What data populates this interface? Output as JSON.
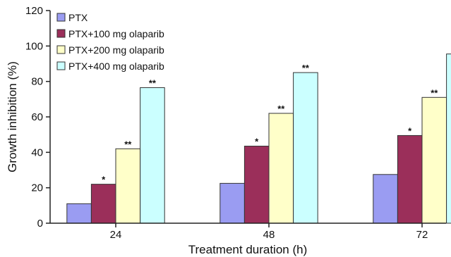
{
  "chart_data": {
    "type": "bar",
    "xlabel": "Treatment duration (h)",
    "ylabel": "Growth inhibition (%)",
    "ylim": [
      0,
      120
    ],
    "yticks": [
      0,
      20,
      40,
      60,
      80,
      100,
      120
    ],
    "categories": [
      "24",
      "48",
      "72"
    ],
    "series": [
      {
        "name": "PTX",
        "values": [
          11,
          22.5,
          27.5
        ],
        "color": "#9a9cf2",
        "sig": [
          "",
          "",
          ""
        ]
      },
      {
        "name": "PTX+100 mg olaparib",
        "values": [
          22,
          43.5,
          49.5
        ],
        "color": "#9b2f5a",
        "sig": [
          "*",
          "*",
          "*"
        ]
      },
      {
        "name": "PTX+200 mg olaparib",
        "values": [
          42,
          62,
          71
        ],
        "color": "#ffffc9",
        "sig": [
          "**",
          "**",
          "**"
        ]
      },
      {
        "name": "PTX+400 mg olaparib",
        "values": [
          76.5,
          85,
          95.5
        ],
        "color": "#cbffff",
        "sig": [
          "**",
          "**",
          "**"
        ]
      }
    ],
    "legend_position": "top-left",
    "grid": false
  }
}
